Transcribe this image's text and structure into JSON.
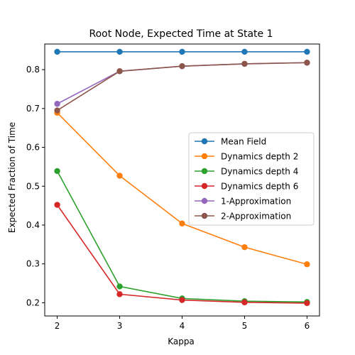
{
  "chart_data": {
    "type": "line",
    "title": "Root Node, Expected Time at State 1",
    "xlabel": "Kappa",
    "ylabel": "Expected Fraction of Time",
    "x": [
      2,
      3,
      4,
      5,
      6
    ],
    "xlim": [
      1.8,
      6.2
    ],
    "ylim": [
      0.166,
      0.866
    ],
    "xticks": [
      2,
      3,
      4,
      5,
      6
    ],
    "yticks": [
      0.2,
      0.3,
      0.4,
      0.5,
      0.6,
      0.7,
      0.8
    ],
    "ytick_labels": [
      "0.2",
      "0.3",
      "0.4",
      "0.5",
      "0.6",
      "0.7",
      "0.8"
    ],
    "grid": false,
    "legend_position": "center-right",
    "series": [
      {
        "name": "Mean Field",
        "color": "#1f77b4",
        "values": [
          0.846,
          0.846,
          0.846,
          0.846,
          0.846
        ]
      },
      {
        "name": "Dynamics depth 2",
        "color": "#ff7f0e",
        "values": [
          0.689,
          0.527,
          0.404,
          0.343,
          0.299
        ]
      },
      {
        "name": "Dynamics depth 4",
        "color": "#2ca02c",
        "values": [
          0.539,
          0.242,
          0.211,
          0.204,
          0.202
        ]
      },
      {
        "name": "Dynamics depth 6",
        "color": "#d62728",
        "values": [
          0.452,
          0.222,
          0.207,
          0.201,
          0.199
        ]
      },
      {
        "name": "1-Approximation",
        "color": "#9467bd",
        "values": [
          0.712,
          0.796,
          0.809,
          0.815,
          0.818
        ]
      },
      {
        "name": "2-Approximation",
        "color": "#8c564b",
        "values": [
          0.695,
          0.796,
          0.809,
          0.815,
          0.818
        ]
      }
    ]
  }
}
